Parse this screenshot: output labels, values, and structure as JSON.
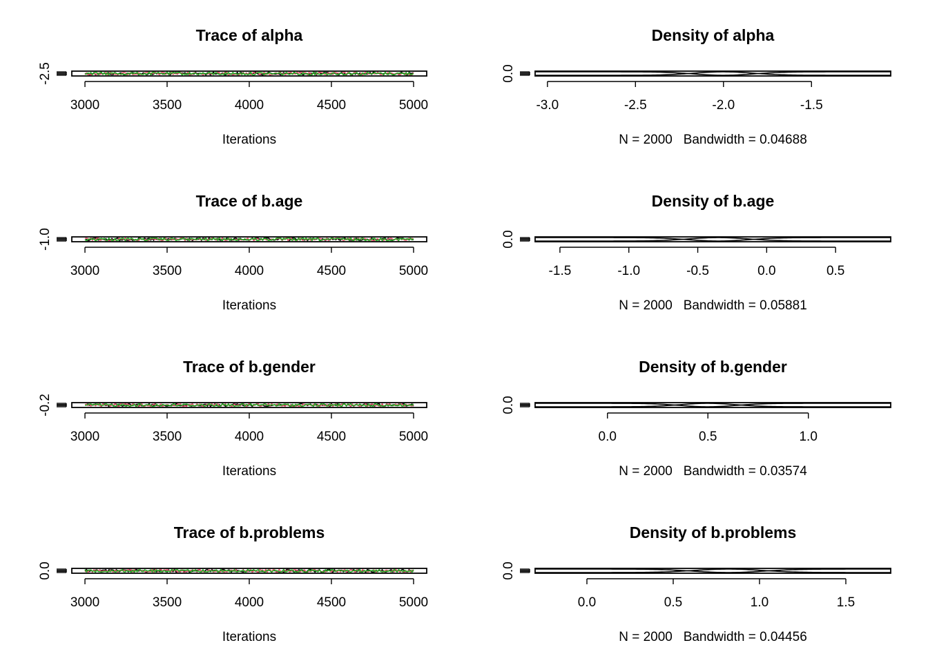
{
  "chart_data": [
    {
      "type": "line",
      "kind": "trace",
      "title": "Trace of alpha",
      "xlabel": "Iterations",
      "x_ticks": [
        3000,
        3500,
        4000,
        4500,
        5000
      ],
      "x_tick_labels": [
        "3000",
        "3500",
        "4000",
        "4500",
        "5000"
      ],
      "xlim": [
        2920,
        5080
      ],
      "y_tick_label": "-2.5",
      "y_center": -2.05,
      "y_spread": 0.3,
      "series": [
        {
          "color": "#000000"
        },
        {
          "color": "#df536b"
        },
        {
          "color": "#22a822"
        }
      ]
    },
    {
      "type": "line",
      "kind": "density",
      "title": "Density of alpha",
      "xlabel": "N = 2000   Bandwidth = 0.04688",
      "x_ticks": [
        -3.0,
        -2.5,
        -2.0,
        -1.5
      ],
      "x_tick_labels": [
        "-3.0",
        "-2.5",
        "-2.0",
        "-1.5"
      ],
      "xlim": [
        -3.07,
        -1.05
      ],
      "y_tick_label": "0.0",
      "mean": -2.0,
      "sd": 0.17
    },
    {
      "type": "line",
      "kind": "trace",
      "title": "Trace of b.age",
      "xlabel": "Iterations",
      "x_ticks": [
        3000,
        3500,
        4000,
        4500,
        5000
      ],
      "x_tick_labels": [
        "3000",
        "3500",
        "4000",
        "4500",
        "5000"
      ],
      "xlim": [
        2920,
        5080
      ],
      "y_tick_label": "-1.0",
      "y_center": -0.3,
      "y_spread": 0.35,
      "series": [
        {
          "color": "#000000"
        },
        {
          "color": "#df536b"
        },
        {
          "color": "#22a822"
        }
      ]
    },
    {
      "type": "line",
      "kind": "density",
      "title": "Density of b.age",
      "xlabel": "N = 2000   Bandwidth = 0.05881",
      "x_ticks": [
        -1.5,
        -1.0,
        -0.5,
        0.0,
        0.5
      ],
      "x_tick_labels": [
        "-1.5",
        "-1.0",
        "-0.5",
        "0.0",
        "0.5"
      ],
      "xlim": [
        -1.68,
        0.9
      ],
      "y_tick_label": "0.0",
      "mean": -0.35,
      "sd": 0.22
    },
    {
      "type": "line",
      "kind": "trace",
      "title": "Trace of b.gender",
      "xlabel": "Iterations",
      "x_ticks": [
        3000,
        3500,
        4000,
        4500,
        5000
      ],
      "x_tick_labels": [
        "3000",
        "3500",
        "4000",
        "4500",
        "5000"
      ],
      "xlim": [
        2920,
        5080
      ],
      "y_tick_label": "-0.2",
      "y_center": 0.5,
      "y_spread": 0.3,
      "series": [
        {
          "color": "#000000"
        },
        {
          "color": "#df536b"
        },
        {
          "color": "#22a822"
        }
      ]
    },
    {
      "type": "line",
      "kind": "density",
      "title": "Density of b.gender",
      "xlabel": "N = 2000   Bandwidth = 0.03574",
      "x_ticks": [
        0.0,
        0.5,
        1.0
      ],
      "x_tick_labels": [
        "0.0",
        "0.5",
        "1.0"
      ],
      "xlim": [
        -0.36,
        1.41
      ],
      "y_tick_label": "0.0",
      "mean": 0.5,
      "sd": 0.14
    },
    {
      "type": "line",
      "kind": "trace",
      "title": "Trace of b.problems",
      "xlabel": "Iterations",
      "x_ticks": [
        3000,
        3500,
        4000,
        4500,
        5000
      ],
      "x_tick_labels": [
        "3000",
        "3500",
        "4000",
        "4500",
        "5000"
      ],
      "xlim": [
        2920,
        5080
      ],
      "y_tick_label": "0.0",
      "y_center": 0.8,
      "y_spread": 0.35,
      "series": [
        {
          "color": "#000000"
        },
        {
          "color": "#df536b"
        },
        {
          "color": "#22a822"
        }
      ]
    },
    {
      "type": "line",
      "kind": "density",
      "title": "Density of b.problems",
      "xlabel": "N = 2000   Bandwidth = 0.04456",
      "x_ticks": [
        0.0,
        0.5,
        1.0,
        1.5
      ],
      "x_tick_labels": [
        "0.0",
        "0.5",
        "1.0",
        "1.5"
      ],
      "xlim": [
        -0.3,
        1.76
      ],
      "y_tick_label": "0.0",
      "mean": 0.82,
      "sd": 0.2
    }
  ]
}
